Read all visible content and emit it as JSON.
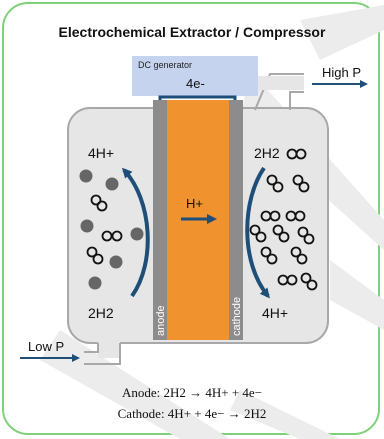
{
  "title": "Electrochemical Extractor / Compressor",
  "dc_generator": {
    "label": "DC generator",
    "electrons": "4e-"
  },
  "outlet": {
    "label": "High P"
  },
  "inlet": {
    "label": "Low P"
  },
  "anode_side": {
    "top_label": "4H+",
    "bottom_label": "2H2",
    "electrode_label": "anode"
  },
  "cathode_side": {
    "top_label": "2H2",
    "bottom_label": "4H+",
    "electrode_label": "cathode"
  },
  "membrane": {
    "label": "H+"
  },
  "equations": {
    "anode": "Anode: 2H2 → 4H+ + 4e−",
    "cathode": "Cathode: 4H+ + 4e− → 2H2"
  },
  "colors": {
    "border": "#7fd07a",
    "membrane": "#f0922e",
    "electrode": "#8c8c8c",
    "arrow": "#1f4e79",
    "chamber": "#e6e6e6",
    "generator": "#c5d3ee"
  }
}
